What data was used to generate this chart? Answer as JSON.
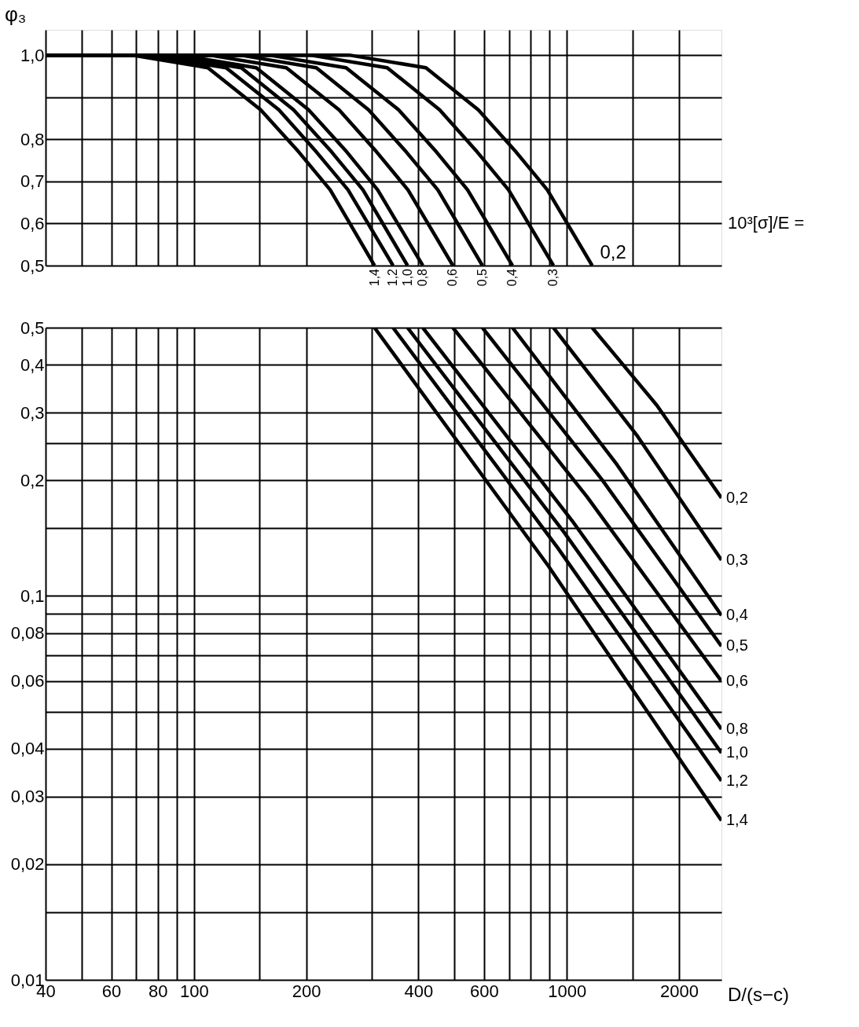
{
  "chart_data": [
    {
      "type": "line",
      "ylabel": "φ₃",
      "legend_title": "10³[σ]/E =",
      "log": "x",
      "grid": true,
      "tick_labels": "y",
      "xlim": [
        40,
        2600
      ],
      "ylim": [
        0.5,
        1.06
      ],
      "xticks": [
        40,
        {
          "value": 50,
          "label": null
        },
        60,
        {
          "value": 70,
          "label": null
        },
        80,
        {
          "value": 90,
          "label": null
        },
        100,
        {
          "value": 150,
          "label": null
        },
        200,
        {
          "value": 300,
          "label": null
        },
        400,
        {
          "value": 500,
          "label": null
        },
        600,
        {
          "value": 700,
          "label": null
        },
        {
          "value": 800,
          "label": null
        },
        {
          "value": 900,
          "label": null
        },
        1000,
        {
          "value": 1500,
          "label": null
        },
        2000
      ],
      "yticks": [
        {
          "value": 0.5,
          "label": "0,5"
        },
        {
          "value": 0.6,
          "label": "0,6"
        },
        {
          "value": 0.7,
          "label": "0,7"
        },
        {
          "value": 0.8,
          "label": "0,8"
        },
        {
          "value": 0.9,
          "label": null
        },
        {
          "value": 1.0,
          "label": "1,0"
        }
      ],
      "series": [
        {
          "name": "1,4",
          "color": "#000000",
          "x": [
            40,
            68,
            109,
            151,
            191,
            232,
            305
          ],
          "values": [
            1.0,
            1.0,
            0.97,
            0.87,
            0.77,
            0.68,
            0.5
          ]
        },
        {
          "name": "1,2",
          "color": "#000000",
          "x": [
            40,
            76,
            122,
            169,
            213,
            259,
            342
          ],
          "values": [
            1.0,
            1.0,
            0.97,
            0.87,
            0.77,
            0.68,
            0.5
          ]
        },
        {
          "name": "1,0",
          "color": "#000000",
          "x": [
            40,
            84,
            134,
            185,
            234,
            284,
            374
          ],
          "values": [
            1.0,
            1.0,
            0.97,
            0.87,
            0.77,
            0.68,
            0.5
          ]
        },
        {
          "name": "0,8",
          "color": "#000000",
          "x": [
            40,
            92,
            147,
            203,
            257,
            311,
            411
          ],
          "values": [
            1.0,
            1.0,
            0.97,
            0.87,
            0.77,
            0.68,
            0.5
          ]
        },
        {
          "name": "0,6",
          "color": "#000000",
          "x": [
            40,
            110,
            177,
            245,
            309,
            375,
            495
          ],
          "values": [
            1.0,
            1.0,
            0.97,
            0.87,
            0.77,
            0.68,
            0.5
          ]
        },
        {
          "name": "0,5",
          "color": "#000000",
          "x": [
            40,
            133,
            213,
            294,
            371,
            451,
            594
          ],
          "values": [
            1.0,
            1.0,
            0.97,
            0.87,
            0.77,
            0.68,
            0.5
          ]
        },
        {
          "name": "0,4",
          "color": "#000000",
          "x": [
            40,
            159,
            256,
            354,
            447,
            542,
            715
          ],
          "values": [
            1.0,
            1.0,
            0.97,
            0.87,
            0.77,
            0.68,
            0.5
          ]
        },
        {
          "name": "0,3",
          "color": "#000000",
          "x": [
            40,
            205,
            330,
            456,
            575,
            698,
            921
          ],
          "values": [
            1.0,
            1.0,
            0.97,
            0.87,
            0.77,
            0.68,
            0.5
          ]
        },
        {
          "name": "0,2",
          "color": "#000000",
          "x": [
            40,
            261,
            419,
            579,
            731,
            887,
            1170
          ],
          "values": [
            1.0,
            1.0,
            0.97,
            0.87,
            0.77,
            0.68,
            0.5
          ]
        }
      ]
    },
    {
      "type": "line",
      "xlabel": "D/(s−c)",
      "log": "xy",
      "grid": true,
      "xlim": [
        40,
        2600
      ],
      "ylim": [
        0.01,
        0.5
      ],
      "xticks": [
        40,
        {
          "value": 50,
          "label": null
        },
        60,
        {
          "value": 70,
          "label": null
        },
        80,
        {
          "value": 90,
          "label": null
        },
        100,
        {
          "value": 150,
          "label": null
        },
        200,
        {
          "value": 300,
          "label": null
        },
        400,
        {
          "value": 500,
          "label": null
        },
        600,
        {
          "value": 700,
          "label": null
        },
        {
          "value": 800,
          "label": null
        },
        {
          "value": 900,
          "label": null
        },
        1000,
        {
          "value": 1500,
          "label": null
        },
        2000
      ],
      "yticks": [
        {
          "value": 0.01,
          "label": "0,01"
        },
        {
          "value": 0.015,
          "label": null
        },
        {
          "value": 0.02,
          "label": "0,02"
        },
        {
          "value": 0.03,
          "label": "0,03"
        },
        {
          "value": 0.04,
          "label": "0,04"
        },
        {
          "value": 0.05,
          "label": null
        },
        {
          "value": 0.06,
          "label": "0,06"
        },
        {
          "value": 0.07,
          "label": null
        },
        {
          "value": 0.08,
          "label": "0,08"
        },
        {
          "value": 0.09,
          "label": null
        },
        {
          "value": 0.1,
          "label": "0,1"
        },
        {
          "value": 0.15,
          "label": null
        },
        {
          "value": 0.2,
          "label": "0,2"
        },
        {
          "value": 0.25,
          "label": null
        },
        {
          "value": 0.3,
          "label": "0,3"
        },
        {
          "value": 0.4,
          "label": "0,4"
        },
        {
          "value": 0.5,
          "label": "0,5"
        }
      ],
      "series": [
        {
          "name": "1,4",
          "color": "#000000",
          "x": [
            305,
            891,
            2600
          ],
          "values": [
            0.5,
            0.12,
            0.026
          ]
        },
        {
          "name": "1,2",
          "color": "#000000",
          "x": [
            342,
            943,
            2600
          ],
          "values": [
            0.5,
            0.134,
            0.033
          ]
        },
        {
          "name": "1,0",
          "color": "#000000",
          "x": [
            374,
            986,
            2600
          ],
          "values": [
            0.5,
            0.146,
            0.039
          ]
        },
        {
          "name": "0,8",
          "color": "#000000",
          "x": [
            411,
            1034,
            2600
          ],
          "values": [
            0.5,
            0.157,
            0.045
          ]
        },
        {
          "name": "0,6",
          "color": "#000000",
          "x": [
            495,
            1135,
            2600
          ],
          "values": [
            0.5,
            0.181,
            0.06
          ]
        },
        {
          "name": "0,5",
          "color": "#000000",
          "x": [
            594,
            1243,
            2600
          ],
          "values": [
            0.5,
            0.201,
            0.074
          ]
        },
        {
          "name": "0,4",
          "color": "#000000",
          "x": [
            715,
            1363,
            2600
          ],
          "values": [
            0.5,
            0.22,
            0.089
          ]
        },
        {
          "name": "0,3",
          "color": "#000000",
          "x": [
            921,
            1547,
            2600
          ],
          "values": [
            0.5,
            0.261,
            0.124
          ]
        },
        {
          "name": "0,2",
          "color": "#000000",
          "x": [
            1170,
            1744,
            2600
          ],
          "values": [
            0.5,
            0.314,
            0.18
          ]
        }
      ]
    }
  ]
}
